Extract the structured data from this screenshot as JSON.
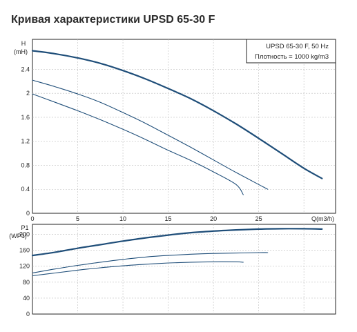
{
  "page": {
    "title": "Кривая характеристики UPSD 65-30 F"
  },
  "chart_data": [
    {
      "type": "line",
      "ylabel_line1": "H",
      "ylabel_line2": "(mH)",
      "xlabel": "Q(m3/h)",
      "xlim": [
        0,
        33.5
      ],
      "ylim": [
        0,
        2.9
      ],
      "x_ticks": [
        0,
        5,
        10,
        15,
        20,
        25
      ],
      "y_ticks": [
        0,
        0.4,
        0.8,
        1.2,
        1.6,
        2,
        2.4
      ],
      "legend": {
        "line1": "UPSD 65-30 F, 50 Hz",
        "line2": "Плотность = 1000 kg/m3",
        "placement": "top-right"
      },
      "grid": true,
      "series": [
        {
          "color": "#1f4e79",
          "width": "thick",
          "x": [
            0,
            2.5,
            5,
            7.5,
            10,
            12.5,
            15,
            17.5,
            20,
            22.5,
            25,
            27.5,
            30,
            32
          ],
          "y": [
            2.71,
            2.66,
            2.59,
            2.5,
            2.38,
            2.24,
            2.08,
            1.91,
            1.71,
            1.49,
            1.25,
            1.0,
            0.75,
            0.58
          ]
        },
        {
          "color": "#1f4e79",
          "width": "thin",
          "x": [
            0,
            2.5,
            5,
            7.5,
            10,
            12.5,
            15,
            17.5,
            20,
            22.5,
            25,
            26
          ],
          "y": [
            2.22,
            2.11,
            1.99,
            1.85,
            1.68,
            1.5,
            1.3,
            1.1,
            0.89,
            0.68,
            0.48,
            0.4
          ]
        },
        {
          "color": "#1f4e79",
          "width": "thin",
          "x": [
            0,
            2.5,
            5,
            7.5,
            10,
            12.5,
            15,
            17.5,
            20,
            22.5,
            23.3
          ],
          "y": [
            1.99,
            1.85,
            1.71,
            1.56,
            1.4,
            1.23,
            1.05,
            0.88,
            0.69,
            0.48,
            0.31
          ]
        }
      ]
    },
    {
      "type": "line",
      "ylabel_line1": "P1",
      "ylabel_line2": "(WP1)",
      "xlim": [
        0,
        33.5
      ],
      "ylim": [
        0,
        225
      ],
      "y_ticks": [
        0,
        40,
        80,
        120,
        160,
        200
      ],
      "grid": true,
      "series": [
        {
          "color": "#1f4e79",
          "width": "thick",
          "x": [
            0,
            2.5,
            5,
            7.5,
            10,
            12.5,
            15,
            17.5,
            20,
            22.5,
            25,
            27.5,
            30,
            32
          ],
          "y": [
            147,
            155,
            165,
            174,
            183,
            191,
            198,
            204,
            208,
            211,
            213,
            214,
            214,
            213
          ]
        },
        {
          "color": "#1f4e79",
          "width": "thin",
          "x": [
            0,
            2.5,
            5,
            7.5,
            10,
            12.5,
            15,
            17.5,
            20,
            22.5,
            25,
            26
          ],
          "y": [
            103,
            113,
            122,
            130,
            137,
            143,
            147,
            150,
            152,
            153,
            154,
            154
          ]
        },
        {
          "color": "#1f4e79",
          "width": "thin",
          "x": [
            0,
            2.5,
            5,
            7.5,
            10,
            12.5,
            15,
            17.5,
            20,
            22.5,
            23.3
          ],
          "y": [
            96,
            103,
            110,
            116,
            121,
            125,
            128,
            130,
            131,
            131,
            130
          ]
        }
      ]
    }
  ]
}
